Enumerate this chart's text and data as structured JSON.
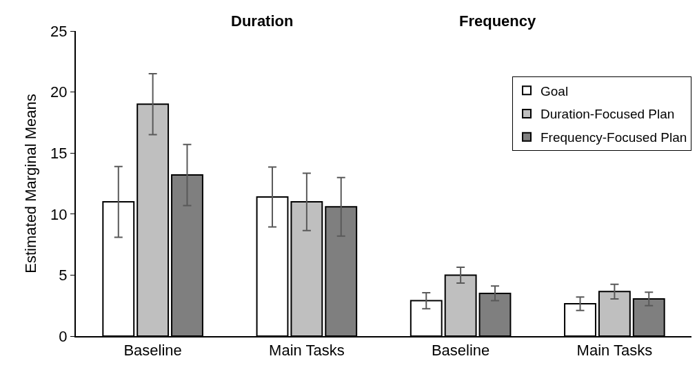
{
  "chart_data": [
    {
      "type": "bar",
      "title": "Duration",
      "ylabel": "Estimated Marginal Means",
      "categories": [
        "Baseline",
        "Main Tasks"
      ],
      "ylim": [
        0,
        25
      ],
      "yticks": [
        0,
        5,
        10,
        15,
        20,
        25
      ],
      "series": [
        {
          "color": "#ffffff",
          "values": [
            11.0,
            11.4
          ],
          "errors": [
            2.9,
            2.45
          ]
        },
        {
          "color": "#bfbfbf",
          "values": [
            19.0,
            11.0
          ],
          "errors": [
            2.5,
            2.35
          ]
        },
        {
          "color": "#7f7f7f",
          "values": [
            13.2,
            10.6
          ],
          "errors": [
            2.5,
            2.4
          ]
        }
      ]
    },
    {
      "type": "bar",
      "title": "Frequency",
      "categories": [
        "Baseline",
        "Main Tasks"
      ],
      "ylim": [
        0,
        25
      ],
      "yticks": [
        0,
        5,
        10,
        15,
        20,
        25
      ],
      "tick_labels": "x",
      "legend": "top right",
      "series": [
        {
          "name": "Goal",
          "color": "#ffffff",
          "values": [
            2.9,
            2.65
          ],
          "errors": [
            0.65,
            0.55
          ]
        },
        {
          "name": "Duration-Focused Plan",
          "color": "#bfbfbf",
          "values": [
            5.0,
            3.65
          ],
          "errors": [
            0.65,
            0.6
          ]
        },
        {
          "name": "Frequency-Focused Plan",
          "color": "#7f7f7f",
          "values": [
            3.5,
            3.05
          ],
          "errors": [
            0.6,
            0.55
          ]
        }
      ]
    }
  ]
}
